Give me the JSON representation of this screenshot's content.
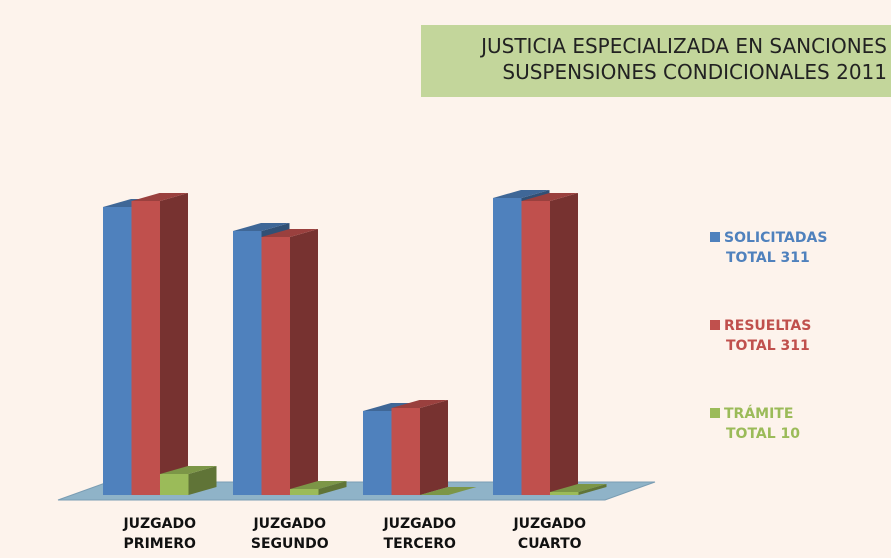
{
  "chart_data": {
    "type": "bar3d",
    "title": [
      "JUSTICIA ESPECIALIZADA EN SANCIONES",
      "SUSPENSIONES CONDICIONALES 2011"
    ],
    "categories": [
      "JUZGADO PRIMERO",
      "JUZGADO SEGUNDO",
      "JUZGADO TERCERO",
      "JUZGADO CUARTO"
    ],
    "series": [
      {
        "name": "SOLICITADAS",
        "total_label": "TOTAL 311",
        "color": "#4f81bd",
        "values": [
          96,
          88,
          28,
          99
        ]
      },
      {
        "name": "RESUELTAS",
        "total_label": "TOTAL 311",
        "color": "#c0504d",
        "values": [
          98,
          86,
          29,
          98
        ]
      },
      {
        "name": "TRÁMITE",
        "total_label": "TOTAL 10",
        "color": "#9bbb59",
        "values": [
          7,
          2,
          0,
          1
        ]
      }
    ]
  }
}
